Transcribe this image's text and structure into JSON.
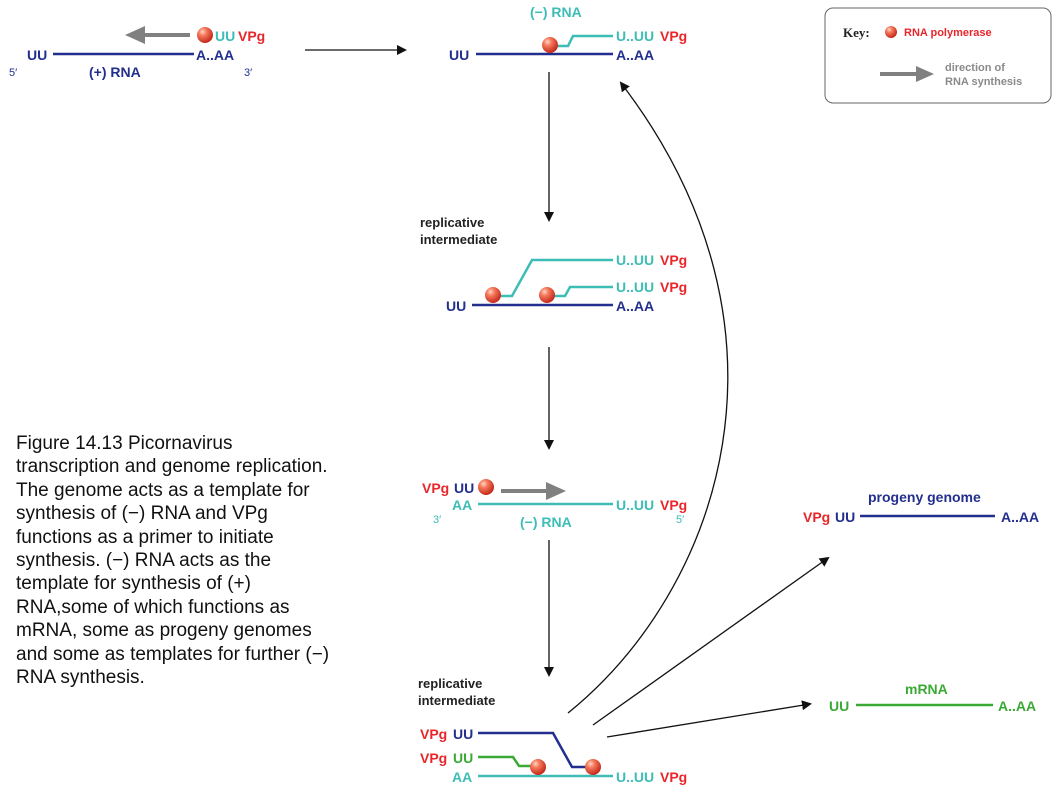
{
  "colors": {
    "plus_strand": "#232f8e",
    "minus_strand": "#3dbdb6",
    "vpg": "#e8262b",
    "mrna": "#3aaa35",
    "arrow_synthesis": "#808080",
    "flow_arrow": "#111111",
    "polymerase": "#e8573c"
  },
  "key": {
    "title": "Key:",
    "polymerase_label": "RNA polymerase",
    "direction_line1": "direction of",
    "direction_line2": "RNA synthesis"
  },
  "stage1": {
    "left_end": "UU",
    "right_end": "A..AA",
    "strand_label": "(+) RNA",
    "five_prime": "5′",
    "three_prime": "3′",
    "primer_uu": "UU",
    "primer_vpg": "VPg"
  },
  "stage2": {
    "label": "(−) RNA",
    "left_end": "UU",
    "right_end": "A..AA",
    "new_strand_u": "U..UU",
    "new_strand_vpg": "VPg"
  },
  "stage3": {
    "label_line1": "replicative",
    "label_line2": "intermediate",
    "left_end": "UU",
    "right_end": "A..AA",
    "strand1_u": "U..UU",
    "strand1_vpg": "VPg",
    "strand2_u": "U..UU",
    "strand2_vpg": "VPg"
  },
  "stage4": {
    "primer_vpg": "VPg",
    "primer_uu": "UU",
    "left_end": "AA",
    "right_u": "U..UU",
    "right_vpg": "VPg",
    "three_prime": "3′",
    "five_prime": "5′",
    "strand_label": "(−) RNA"
  },
  "stage5": {
    "label_line1": "replicative",
    "label_line2": "intermediate",
    "row1_vpg": "VPg",
    "row1_uu": "UU",
    "row2_vpg": "VPg",
    "row2_uu": "UU",
    "row3_left": "AA",
    "row3_u": "U..UU",
    "row3_vpg": "VPg"
  },
  "progeny": {
    "title": "progeny genome",
    "vpg": "VPg",
    "uu": "UU",
    "right_end": "A..AA"
  },
  "mrna": {
    "title": "mRNA",
    "left_end": "UU",
    "right_end": "A..AA"
  },
  "caption": {
    "text": "Figure 14.13 Picornavirus transcription and genome replication. The genome acts as a template for synthesis of (−) RNA and VPg functions as a primer to initiate synthesis. (−) RNA acts as the template for synthesis of (+) RNA,some of which functions as mRNA, some as progeny genomes and some as templates for further (−) RNA synthesis."
  }
}
